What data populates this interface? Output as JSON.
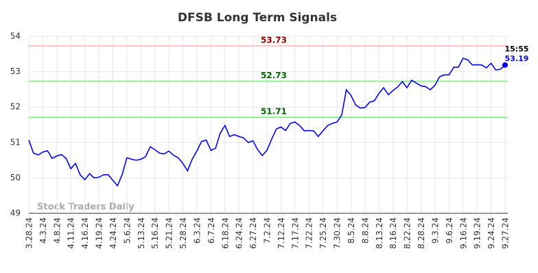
{
  "chart_data": {
    "type": "line",
    "title": "DFSB Long Term Signals",
    "categories": [
      "3.28.24",
      null,
      null,
      "4.3.24",
      null,
      null,
      "4.8.24",
      null,
      null,
      "4.11.24",
      null,
      null,
      "4.16.24",
      null,
      null,
      "4.19.24",
      null,
      null,
      "4.24.24",
      null,
      null,
      "5.6.24",
      null,
      null,
      "5.13.24",
      null,
      null,
      "5.16.24",
      null,
      null,
      "5.21.24",
      null,
      null,
      "5.28.24",
      null,
      null,
      "6.3.24",
      null,
      null,
      "6.7.24",
      null,
      null,
      "6.18.24",
      null,
      null,
      "6.24.24",
      null,
      null,
      "6.27.24",
      null,
      null,
      "7.2.24",
      null,
      null,
      "7.12.24",
      null,
      null,
      "7.17.24",
      null,
      null,
      "7.22.24",
      null,
      null,
      "7.25.24",
      null,
      null,
      "7.30.24",
      null,
      null,
      "8.5.24",
      null,
      null,
      "8.8.24",
      null,
      null,
      "8.13.24",
      null,
      null,
      "8.16.24",
      null,
      null,
      "8.22.24",
      null,
      null,
      "8.28.24",
      null,
      null,
      "9.3.24",
      null,
      null,
      "9.6.24",
      null,
      null,
      "9.16.24",
      null,
      null,
      "9.19.24",
      null,
      null,
      "9.24.24",
      null,
      null,
      "9.27.24"
    ],
    "values": [
      51.07,
      50.7,
      50.65,
      50.73,
      50.77,
      50.55,
      50.62,
      50.66,
      50.55,
      50.26,
      50.41,
      50.09,
      49.95,
      50.12,
      50.0,
      50.02,
      50.09,
      50.09,
      49.93,
      49.78,
      50.1,
      50.57,
      50.53,
      50.5,
      50.53,
      50.6,
      50.88,
      50.8,
      50.7,
      50.68,
      50.76,
      50.64,
      50.57,
      50.41,
      50.2,
      50.53,
      50.76,
      51.03,
      51.07,
      50.78,
      50.84,
      51.27,
      51.48,
      51.17,
      51.22,
      51.17,
      51.13,
      51.0,
      51.05,
      50.8,
      50.63,
      50.78,
      51.09,
      51.38,
      51.44,
      51.34,
      51.54,
      51.58,
      51.48,
      51.33,
      51.34,
      51.33,
      51.17,
      51.33,
      51.48,
      51.54,
      51.58,
      51.77,
      52.49,
      52.33,
      52.06,
      51.97,
      51.99,
      52.14,
      52.18,
      52.39,
      52.55,
      52.35,
      52.47,
      52.57,
      52.72,
      52.55,
      52.76,
      52.68,
      52.6,
      52.58,
      52.49,
      52.62,
      52.86,
      52.91,
      52.91,
      53.13,
      53.13,
      53.38,
      53.34,
      53.19,
      53.2,
      53.19,
      53.11,
      53.24,
      53.05,
      53.07,
      53.19
    ],
    "color": "#0000ee",
    "ylim": [
      49,
      54
    ],
    "yticks": [
      49,
      50,
      51,
      52,
      53,
      54
    ],
    "grid": true,
    "reference_lines": [
      {
        "value": 53.73,
        "color": "#ffc0c0",
        "label_color": "#8b0000"
      },
      {
        "value": 52.73,
        "color": "#90ee90",
        "label_color": "#006400"
      },
      {
        "value": 51.71,
        "color": "#90ee90",
        "label_color": "#006400"
      }
    ],
    "last_time": "15:55",
    "watermark": "Stock Traders Daily"
  }
}
